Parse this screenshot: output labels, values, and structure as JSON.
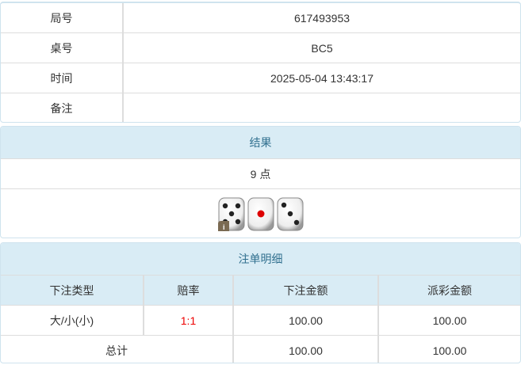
{
  "info": {
    "rows": [
      {
        "label": "局号",
        "value": "617493953"
      },
      {
        "label": "桌号",
        "value": "BC5"
      },
      {
        "label": "时间",
        "value": "2025-05-04 13:43:17"
      },
      {
        "label": "备注",
        "value": ""
      }
    ]
  },
  "result": {
    "title": "结果",
    "points": "9 点",
    "dice": [
      5,
      1,
      3
    ],
    "info_badge": "i"
  },
  "bets": {
    "title": "注单明细",
    "headers": [
      "下注类型",
      "赔率",
      "下注金额",
      "派彩金额"
    ],
    "rows": [
      {
        "type": "大/小(小)",
        "odds": "1:1",
        "amount": "100.00",
        "payout": "100.00"
      }
    ],
    "total": {
      "label": "总计",
      "amount": "100.00",
      "payout": "100.00"
    },
    "odds_color": "#e00000"
  }
}
